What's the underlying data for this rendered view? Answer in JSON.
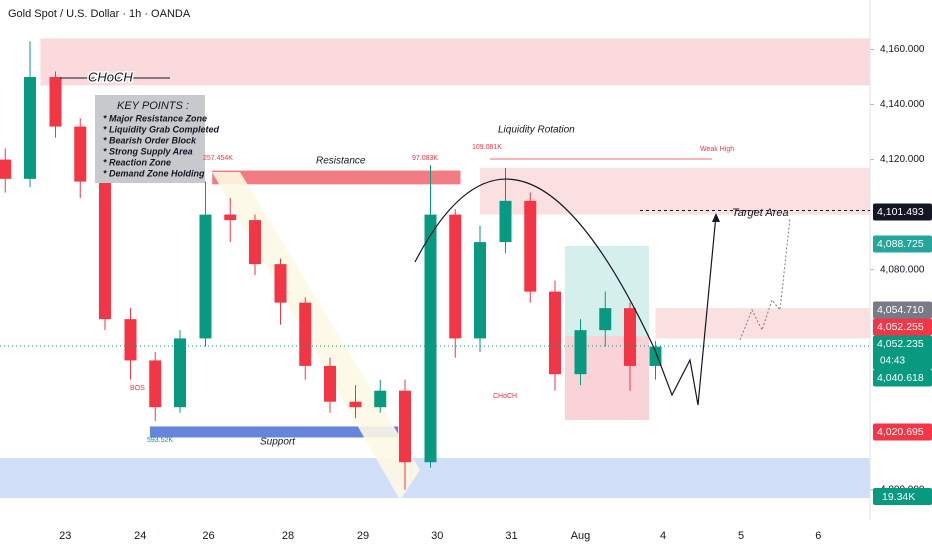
{
  "chart_data": {
    "type": "candlestick",
    "title": "Gold Spot / U.S. Dollar · 1h · OANDA",
    "x": [
      -0.8,
      -0.47,
      -0.13,
      0.2,
      0.53,
      0.87,
      1.2,
      1.53,
      1.87,
      2.2,
      2.53,
      2.87,
      3.2,
      3.53,
      3.87,
      4.2,
      4.53,
      4.87,
      5.2,
      5.53,
      5.87,
      6.2,
      6.53,
      6.87,
      7.2,
      7.53,
      7.87
    ],
    "open": [
      4120,
      4113,
      4150,
      4132,
      4112,
      4062,
      4047,
      4030,
      4055,
      4100,
      4098,
      4082,
      4068,
      4045,
      4032,
      4030,
      4036,
      4010,
      4100,
      4055,
      4090,
      4105,
      4072,
      4042,
      4058,
      4066,
      4045
    ],
    "high": [
      4124,
      4163,
      4152,
      4135,
      4114,
      4066,
      4050,
      4058,
      4112,
      4106,
      4100,
      4084,
      4070,
      4048,
      4038,
      4040,
      4040,
      4118,
      4102,
      4096,
      4117,
      4108,
      4076,
      4062,
      4072,
      4068,
      4054
    ],
    "low": [
      4108,
      4110,
      4128,
      4106,
      4058,
      4040,
      4025,
      4028,
      4052,
      4090,
      4078,
      4060,
      4040,
      4028,
      4026,
      4028,
      4000,
      4008,
      4048,
      4050,
      4086,
      4068,
      4036,
      4038,
      4052,
      4036,
      4040
    ],
    "close": [
      4113,
      4150,
      4132,
      4112,
      4062,
      4047,
      4030,
      4055,
      4100,
      4098,
      4082,
      4068,
      4045,
      4032,
      4030,
      4036,
      4010,
      4100,
      4055,
      4090,
      4105,
      4072,
      4042,
      4058,
      4066,
      4045,
      4052
    ],
    "up_color": "#089981",
    "down_color": "#f23645",
    "xlim": [
      -0.87,
      10.73
    ],
    "xticks": [
      {
        "value": 0,
        "label": "23"
      },
      {
        "value": 1,
        "label": "24"
      },
      {
        "value": 1.91,
        "label": "26"
      },
      {
        "value": 2.97,
        "label": "28"
      },
      {
        "value": 3.97,
        "label": "29"
      },
      {
        "value": 4.96,
        "label": "30"
      },
      {
        "value": 5.95,
        "label": "31"
      },
      {
        "value": 6.87,
        "label": "Aug"
      },
      {
        "value": 7.97,
        "label": "4"
      },
      {
        "value": 9.01,
        "label": "5"
      },
      {
        "value": 10.04,
        "label": "6"
      }
    ],
    "ylim": [
      3989,
      4178
    ],
    "yticks": [
      {
        "value": 4160,
        "label": "4,160.000"
      },
      {
        "value": 4140,
        "label": "4,140.000"
      },
      {
        "value": 4120,
        "label": "4,120.000"
      },
      {
        "value": 4080,
        "label": "4,080.000"
      },
      {
        "value": 4000,
        "label": "4,000.000"
      }
    ],
    "zones": [
      {
        "x": [
          -0.33,
          10.73
        ],
        "y": [
          4147,
          4164
        ],
        "color": "#f9d3d7"
      },
      {
        "x": [
          5.53,
          10.73
        ],
        "y": [
          4100,
          4117
        ],
        "color": "#fadadd"
      },
      {
        "x": [
          7.87,
          10.73
        ],
        "y": [
          4055,
          4066
        ],
        "color": "#fadadd"
      },
      {
        "x": [
          1.13,
          4.44
        ],
        "y": [
          4019,
          4023
        ],
        "color": "#4a6fd6"
      },
      {
        "x": [
          1.96,
          5.27
        ],
        "y": [
          4111,
          4116
        ],
        "color": "#f0646f"
      }
    ],
    "price_labels": [
      {
        "value": 4101.493,
        "label": "4,101.493",
        "color": "#131722"
      },
      {
        "value": 4088.725,
        "label": "4,088.725",
        "color": "#26a69a"
      },
      {
        "value": 4054.71,
        "label": "4,054.710",
        "color": "#787b86"
      },
      {
        "value": 4052.255,
        "label": "4,052.255",
        "color": "#f23645"
      },
      {
        "value": 4052.235,
        "label": "4,052.235",
        "color": "#089981"
      },
      {
        "value": 4040.618,
        "label": "4,040.618",
        "color": "#089981"
      },
      {
        "value": 4020.695,
        "label": "4,020.695",
        "color": "#f23645"
      }
    ],
    "countdown": "04:43",
    "volume_label": "19.34K",
    "annotations": {
      "choch_main": "CHoCH",
      "key_points_title": "KEY POINTS :",
      "key_points": [
        "* Major Resistance Zone",
        "* Liquidity Grab Completed",
        "* Bearish Order Block",
        "* Strong Supply Area",
        "* Reaction Zone",
        "* Demand Zone Holding"
      ],
      "liquidity_rotation": "Liquidity Rotation",
      "resistance": "Resistance",
      "support": "Support",
      "target_area": "Target Area",
      "weak_high": "Weak High",
      "vol_1": "257.454K",
      "vol_2": "97.083K",
      "vol_3": "109.081K",
      "vol_4": "593.52K",
      "choch": "CHoCH",
      "bos": "BOS"
    }
  }
}
